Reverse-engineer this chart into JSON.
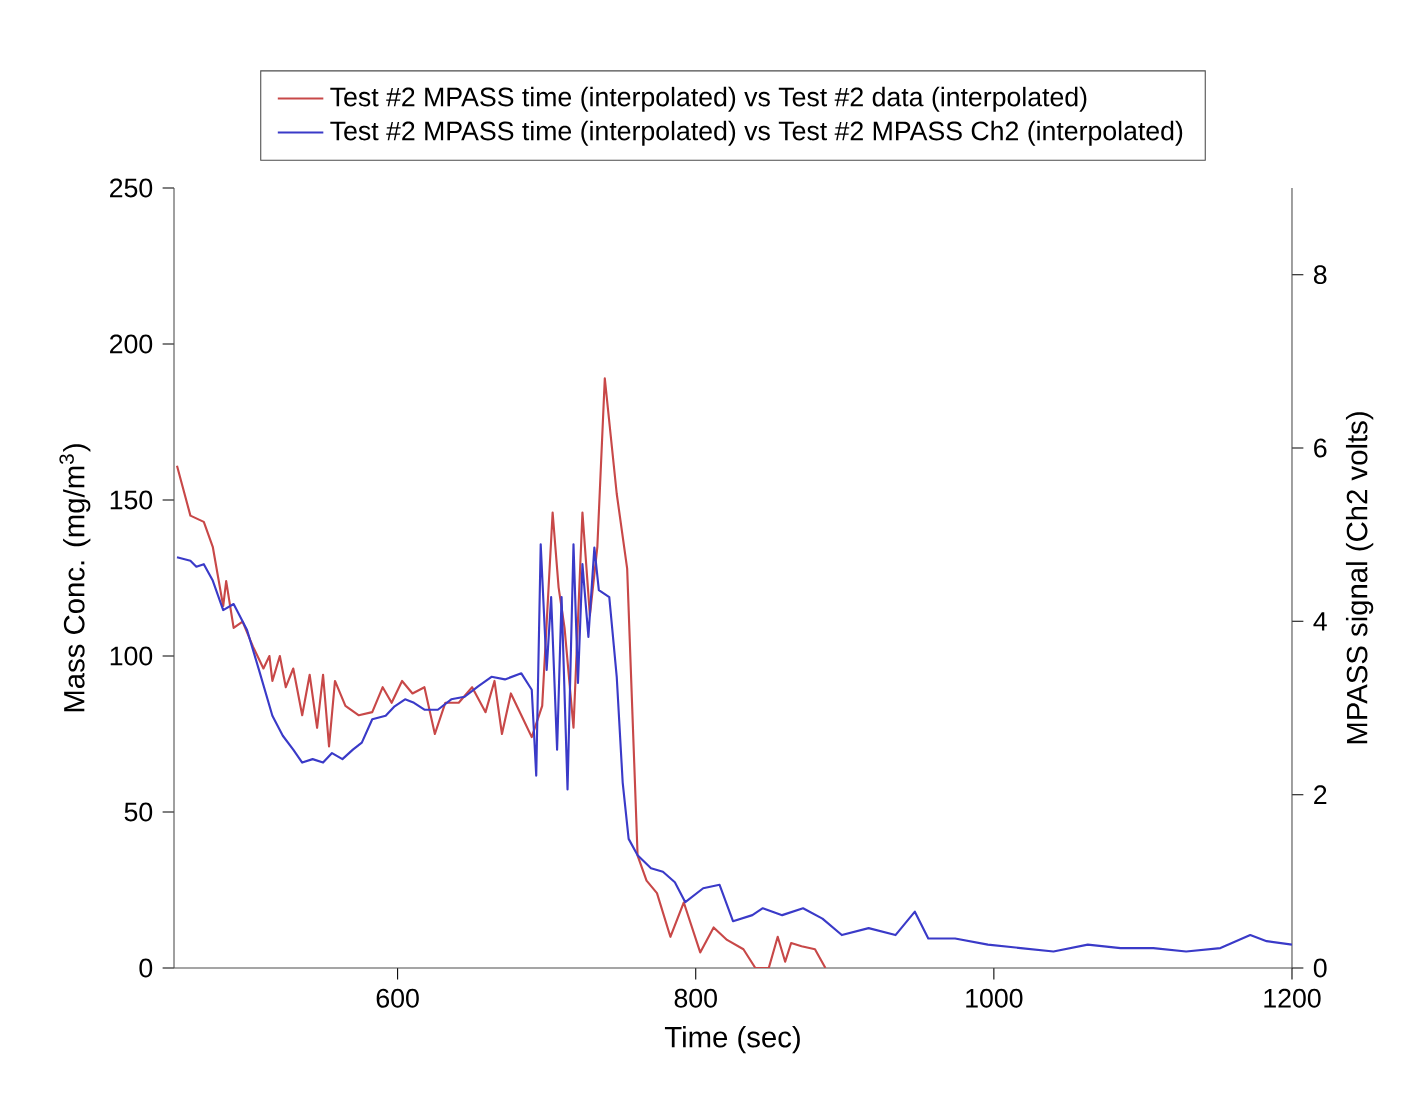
{
  "chart_data": {
    "type": "line",
    "xlabel": "Time (sec)",
    "ylabel": "Mass Conc. (mg/m$^{3}$)",
    "y2label": "MPASS signal (Ch2 volts)",
    "xlim": [
      450,
      1200
    ],
    "ylim": [
      0,
      250
    ],
    "y2lim": [
      0,
      9
    ],
    "xticks": [
      600,
      800,
      1000,
      1200
    ],
    "yticks": [
      0,
      50,
      100,
      150,
      200,
      250
    ],
    "y2ticks": [
      0,
      2,
      4,
      6,
      8
    ],
    "legend": "top",
    "series": [
      {
        "name": "Test #2 MPASS time (interpolated) vs Test #2 data (interpolated)",
        "color": "#c84848",
        "x": [
          452,
          461,
          470,
          476,
          483,
          485,
          490,
          496,
          503,
          510,
          514,
          516,
          521,
          525,
          530,
          536,
          541,
          546,
          550,
          554,
          558,
          565,
          574,
          583,
          590,
          596,
          603,
          610,
          618,
          625,
          632,
          641,
          650,
          659,
          665,
          670,
          676,
          683,
          690,
          697,
          704,
          708,
          712,
          718,
          724,
          729,
          734,
          739,
          747,
          754,
          761,
          767,
          774,
          783,
          792,
          803,
          812,
          821,
          832,
          840,
          849,
          855,
          860,
          864,
          871,
          880,
          887
        ],
        "values": [
          161,
          145,
          143,
          135,
          116,
          124,
          109,
          111,
          103,
          96,
          100,
          92,
          100,
          90,
          96,
          81,
          94,
          77,
          94,
          71,
          92,
          84,
          81,
          82,
          90,
          85,
          92,
          88,
          90,
          75,
          85,
          85,
          90,
          82,
          92,
          75,
          88,
          81,
          74,
          84,
          146,
          122,
          109,
          77,
          146,
          113,
          135,
          189,
          152,
          128,
          36,
          28,
          24,
          10,
          21,
          5,
          13,
          9,
          6,
          0,
          0,
          10,
          2,
          8,
          7,
          6,
          0
        ]
      },
      {
        "name": "Test #2 MPASS time (interpolated) vs Test #2 MPASS Ch2 (interpolated)",
        "color": "#3a3ac8",
        "axis": "y2",
        "x": [
          452,
          461,
          465,
          470,
          476,
          483,
          490,
          499,
          507,
          516,
          523,
          530,
          536,
          543,
          550,
          556,
          563,
          570,
          576,
          583,
          592,
          598,
          605,
          611,
          618,
          627,
          636,
          645,
          654,
          663,
          672,
          683,
          690,
          693,
          696,
          700,
          703,
          707,
          710,
          714,
          718,
          721,
          724,
          728,
          732,
          735,
          742,
          747,
          751,
          755,
          761,
          770,
          778,
          786,
          793,
          805,
          816,
          825,
          838,
          845,
          858,
          872,
          885,
          898,
          916,
          934,
          947,
          956,
          974,
          996,
          1018,
          1040,
          1063,
          1085,
          1107,
          1129,
          1152,
          1172,
          1183,
          1200
        ],
        "values": [
          4.74,
          4.7,
          4.63,
          4.66,
          4.47,
          4.13,
          4.2,
          3.9,
          3.44,
          2.91,
          2.68,
          2.52,
          2.37,
          2.41,
          2.37,
          2.48,
          2.41,
          2.52,
          2.6,
          2.87,
          2.91,
          3.02,
          3.1,
          3.06,
          2.98,
          2.98,
          3.1,
          3.13,
          3.25,
          3.36,
          3.33,
          3.4,
          3.21,
          2.22,
          4.89,
          3.44,
          4.28,
          2.52,
          4.28,
          2.06,
          4.89,
          3.29,
          4.66,
          3.82,
          4.85,
          4.36,
          4.28,
          3.36,
          2.14,
          1.49,
          1.3,
          1.15,
          1.11,
          0.99,
          0.76,
          0.92,
          0.96,
          0.54,
          0.61,
          0.69,
          0.61,
          0.69,
          0.57,
          0.38,
          0.46,
          0.38,
          0.65,
          0.34,
          0.34,
          0.27,
          0.23,
          0.19,
          0.27,
          0.23,
          0.23,
          0.19,
          0.23,
          0.38,
          0.31,
          0.27
        ]
      }
    ]
  }
}
